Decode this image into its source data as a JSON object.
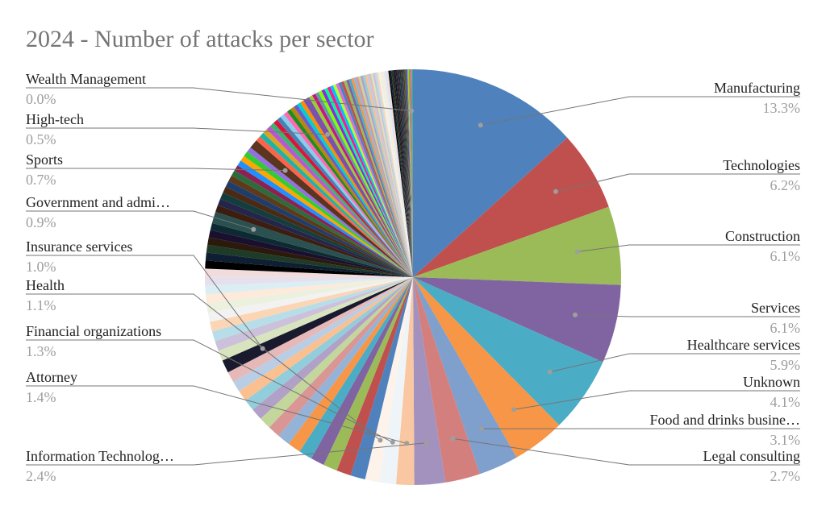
{
  "chart_data": {
    "type": "pie",
    "title": "2024 - Number of attacks per sector",
    "labeled_slices": [
      {
        "label": "Manufacturing",
        "percent_label": "13.3%",
        "value": 13.3,
        "color": "#4f81bd"
      },
      {
        "label": "Technologies",
        "percent_label": "6.2%",
        "value": 6.2,
        "color": "#c0504d"
      },
      {
        "label": "Construction",
        "percent_label": "6.1%",
        "value": 6.1,
        "color": "#9bbb59"
      },
      {
        "label": "Services",
        "percent_label": "6.1%",
        "value": 6.1,
        "color": "#8064a2"
      },
      {
        "label": "Healthcare services",
        "percent_label": "5.9%",
        "value": 5.9,
        "color": "#4bacc6"
      },
      {
        "label": "Unknown",
        "percent_label": "4.1%",
        "value": 4.1,
        "color": "#f79646"
      },
      {
        "label": "Food and drinks busine…",
        "percent_label": "3.1%",
        "value": 3.1,
        "color": "#7f9fcd"
      },
      {
        "label": "Legal consulting",
        "percent_label": "2.7%",
        "value": 2.7,
        "color": "#d37f7d"
      },
      {
        "label": "Information Technolog…",
        "percent_label": "2.4%",
        "value": 2.4,
        "color": "#a392bd"
      },
      {
        "label": "Attorney",
        "percent_label": "1.4%",
        "value": 1.4,
        "color": "#f9c7a1"
      },
      {
        "label": "Financial organizations",
        "percent_label": "1.3%",
        "value": 1.3,
        "color": "#eef4f7"
      },
      {
        "label": "Health",
        "percent_label": "1.1%",
        "value": 1.1,
        "color": "#fdf3ea"
      },
      {
        "label": "Insurance services",
        "percent_label": "1.0%",
        "value": 1.0,
        "color": "#1a1a2e"
      },
      {
        "label": "Government and admi…",
        "percent_label": "0.9%",
        "value": 0.9,
        "color": "#2a5050"
      },
      {
        "label": "Sports",
        "percent_label": "0.7%",
        "value": 0.7,
        "color": "#5a3520"
      },
      {
        "label": "High-tech",
        "percent_label": "0.5%",
        "value": 0.5,
        "color": "#7b52ab"
      },
      {
        "label": "Wealth Management",
        "percent_label": "0.0%",
        "value": 0.02,
        "color": "#2e7d32"
      }
    ],
    "unlabeled_palette": [
      "#4f81bd",
      "#c0504d",
      "#9bbb59",
      "#8064a2",
      "#4bacc6",
      "#f79646",
      "#95b3d7",
      "#d99694",
      "#c3d69b",
      "#b2a1c7",
      "#92cddc",
      "#fac090",
      "#b9cde5",
      "#e6b9b8",
      "#d7e4bd",
      "#ccc1da",
      "#b7dee8",
      "#fcd5b5",
      "#f2f2f2",
      "#ebf1de",
      "#fdeada",
      "#dbeef4",
      "#e5e0ec",
      "#f2dcdb",
      "#000000",
      "#0f1f33",
      "#1d3b26",
      "#2b1a0c",
      "#1a0f2e",
      "#0d2a33",
      "#3b1e10",
      "#25254a",
      "#143d3d",
      "#4a2a14",
      "#1f3d6b",
      "#5c3a1a",
      "#2d6b3d",
      "#8b2252",
      "#1e90ff",
      "#ffa500",
      "#32cd32",
      "#9370db",
      "#ff6347",
      "#20b2aa",
      "#daa520",
      "#ba55d3",
      "#3cb371",
      "#dc143c",
      "#4682b4",
      "#87ceeb",
      "#ff69b4",
      "#228b22",
      "#b8860b",
      "#6a5acd",
      "#00ced1",
      "#ff8c00",
      "#9acd32",
      "#c71585",
      "#5f9ea0",
      "#7fff00",
      "#8a2be2",
      "#00fa9a",
      "#ff1493",
      "#00bfff",
      "#adff2f",
      "#da70d6"
    ]
  }
}
